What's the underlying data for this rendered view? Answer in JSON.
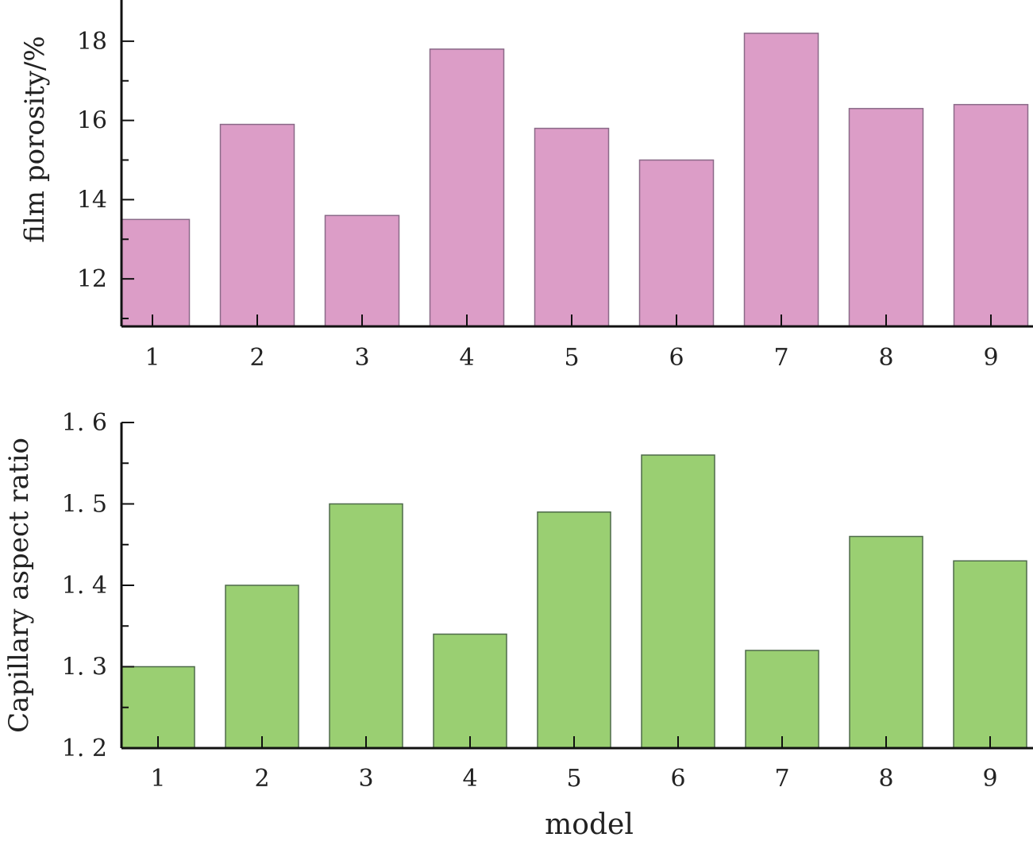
{
  "chart_data": [
    {
      "type": "bar",
      "title": "",
      "xlabel": "",
      "ylabel": "film porosity/%",
      "categories": [
        "1",
        "2",
        "3",
        "4",
        "5",
        "6",
        "7",
        "8",
        "9"
      ],
      "values": [
        13.5,
        15.9,
        13.6,
        17.8,
        15.8,
        15.0,
        18.2,
        16.3,
        16.4
      ],
      "ylim": [
        10.8,
        19.04
      ],
      "yticks": [
        12,
        14,
        16,
        18
      ],
      "ytick_labels": [
        "12",
        "14",
        "16",
        "18"
      ],
      "yminor": [
        11,
        13,
        15,
        17
      ],
      "color": "#dc9dc7",
      "edge_color": "#8a6a88",
      "grid": false
    },
    {
      "type": "bar",
      "title": "",
      "xlabel": "model",
      "ylabel": "Capillary aspect ratio",
      "categories": [
        "1",
        "2",
        "3",
        "4",
        "5",
        "6",
        "7",
        "8",
        "9"
      ],
      "values": [
        1.3,
        1.4,
        1.5,
        1.34,
        1.49,
        1.56,
        1.32,
        1.46,
        1.43
      ],
      "ylim": [
        1.2,
        1.6
      ],
      "yticks": [
        1.2,
        1.3,
        1.4,
        1.5,
        1.6
      ],
      "ytick_labels": [
        "1. 2",
        "1. 3",
        "1. 4",
        "1. 5",
        "1. 6"
      ],
      "yminor": [
        1.25,
        1.35,
        1.45,
        1.55
      ],
      "color": "#9acf72",
      "edge_color": "#4e6a4a",
      "grid": false
    }
  ]
}
